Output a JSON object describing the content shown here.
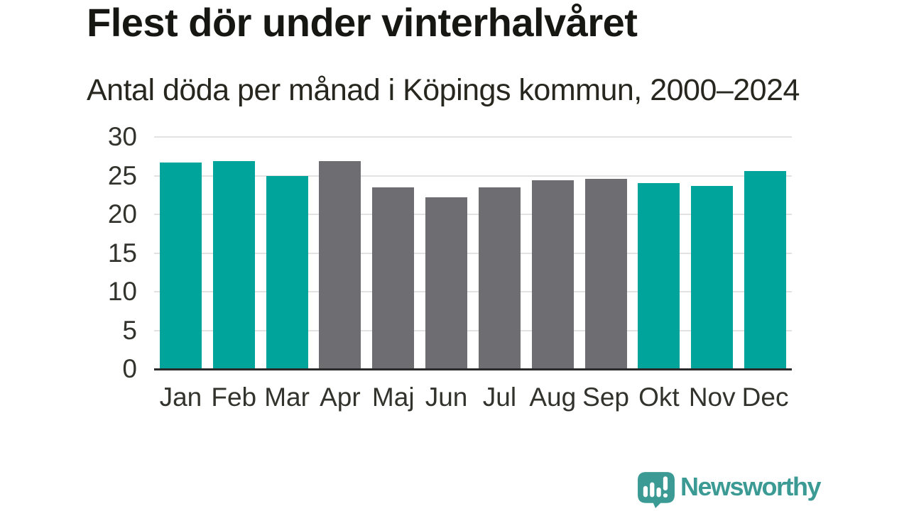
{
  "header": {
    "title": "Flest dör under vinterhalvåret",
    "subtitle": "Antal döda per månad i Köpings kommun, 2000–2024"
  },
  "chart_data": {
    "type": "bar",
    "title": "Flest dör under vinterhalvåret",
    "subtitle": "Antal döda per månad i Köpings kommun, 2000–2024",
    "categories": [
      "Jan",
      "Feb",
      "Mar",
      "Apr",
      "Maj",
      "Jun",
      "Jul",
      "Aug",
      "Sep",
      "Okt",
      "Nov",
      "Dec"
    ],
    "values": [
      26.7,
      26.9,
      25.0,
      26.9,
      23.5,
      22.2,
      23.5,
      24.4,
      24.6,
      24.0,
      23.7,
      25.6
    ],
    "bar_groups": [
      "winter",
      "winter",
      "winter",
      "summer",
      "summer",
      "summer",
      "summer",
      "summer",
      "summer",
      "winter",
      "winter",
      "winter"
    ],
    "palette": {
      "winter": "#00a49a",
      "summer": "#6e6d72"
    },
    "xlabel": "",
    "ylabel": "",
    "ylim": [
      0,
      30
    ],
    "yticks": [
      0,
      5,
      10,
      15,
      20,
      25,
      30
    ],
    "grid": true,
    "legend": false
  },
  "branding": {
    "name": "Newsworthy",
    "color": "#3b9b94",
    "icon": "bar-chart-speech-bubble-icon"
  },
  "theme": {
    "background": "#ffffff",
    "title_color": "#161612",
    "subtitle_color": "#27271f",
    "axis_label_color": "#33332e",
    "gridline_color": "#e2e2e2",
    "axis_line_color": "#2b2b2b"
  }
}
